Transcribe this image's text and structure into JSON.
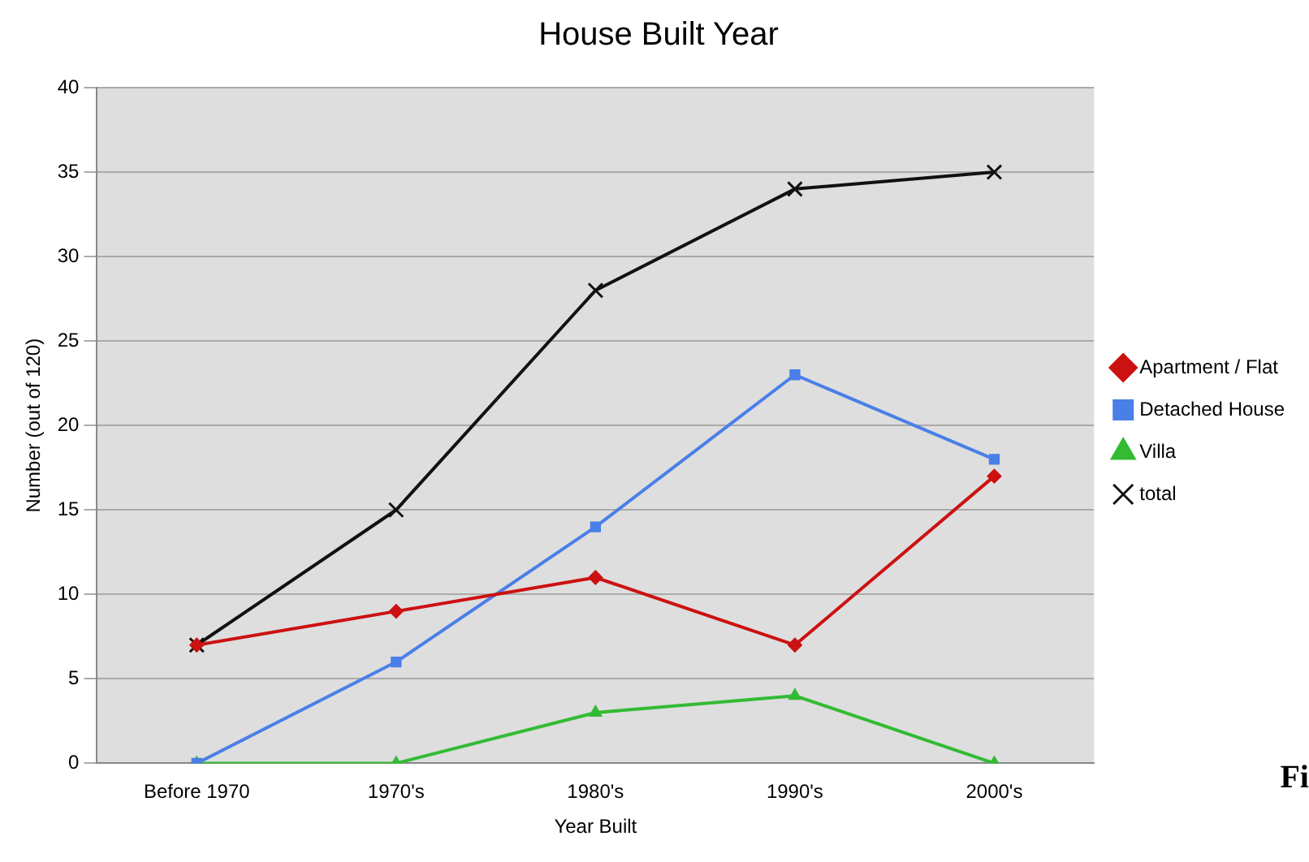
{
  "chart_data": {
    "type": "line",
    "title": "House Built Year",
    "xlabel": "Year Built",
    "ylabel": "Number (out of 120)",
    "categories": [
      "Before 1970",
      "1970's",
      "1980's",
      "1990's",
      "2000's"
    ],
    "series": [
      {
        "name": "Apartment / Flat",
        "color": "#cc1111",
        "marker": "diamond",
        "values": [
          7,
          9,
          11,
          7,
          17
        ]
      },
      {
        "name": "Detached House",
        "color": "#4a7fe8",
        "marker": "square",
        "values": [
          0,
          6,
          14,
          23,
          18
        ]
      },
      {
        "name": "Villa",
        "color": "#33bb33",
        "marker": "triangle",
        "values": [
          0,
          0,
          3,
          4,
          0
        ]
      },
      {
        "name": "total",
        "color": "#111111",
        "marker": "cross",
        "values": [
          7,
          15,
          28,
          34,
          35
        ]
      }
    ],
    "ylim": [
      0,
      40
    ],
    "yticks": [
      0,
      5,
      10,
      15,
      20,
      25,
      30,
      35,
      40
    ],
    "grid": "y",
    "legend": "right",
    "line_style": "solid",
    "annotations": [
      "Fi"
    ]
  }
}
